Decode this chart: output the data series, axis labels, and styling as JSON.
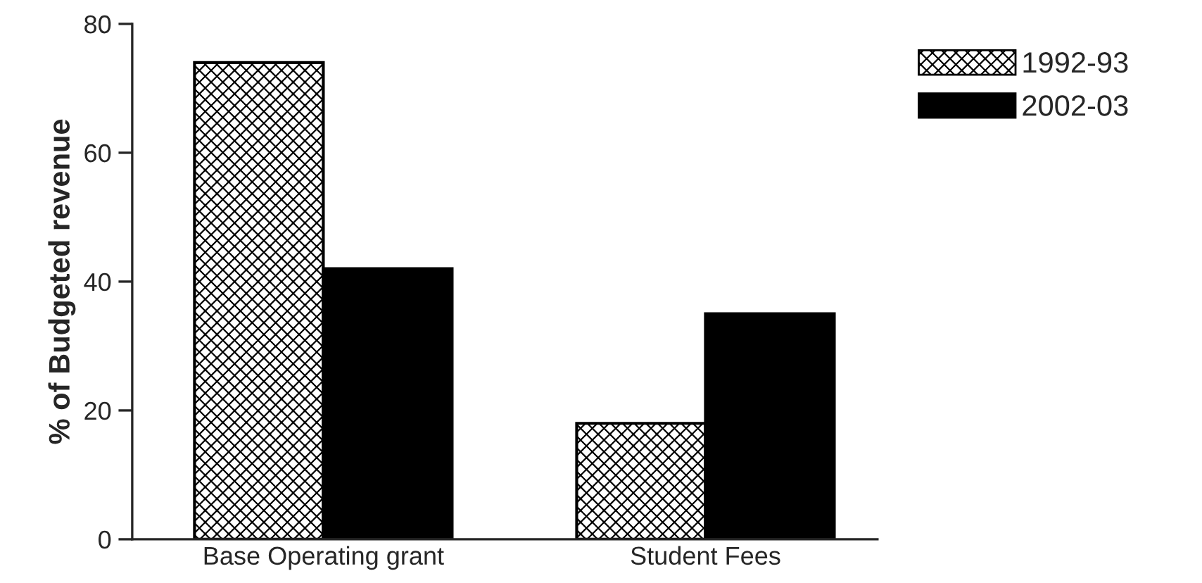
{
  "chart_data": {
    "type": "bar",
    "ylabel": "% of Budgeted revenue",
    "categories": [
      "Base Operating grant",
      "Student Fees"
    ],
    "series": [
      {
        "name": "1992-93",
        "color": "#000000",
        "values": [
          74,
          18
        ]
      },
      {
        "name": "2002-03",
        "color": "#000000",
        "values": [
          42,
          35
        ]
      }
    ],
    "ylim": [
      0,
      80
    ],
    "yticks": [
      0,
      20,
      40,
      60,
      80
    ],
    "grid": false,
    "legend": "top right"
  }
}
